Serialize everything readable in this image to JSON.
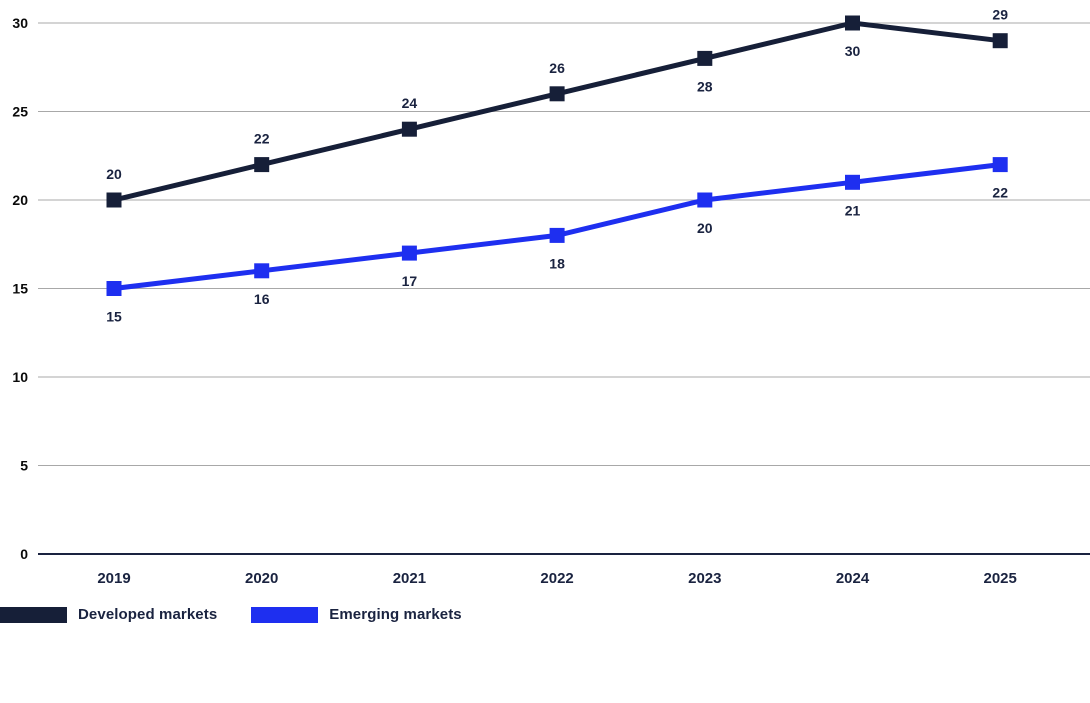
{
  "chart_data": {
    "type": "line",
    "title": "",
    "xlabel": "",
    "ylabel": "",
    "categories": [
      "2019",
      "2020",
      "2021",
      "2022",
      "2023",
      "2024",
      "2025"
    ],
    "series": [
      {
        "name": "Developed markets",
        "color": "#161f38",
        "values": [
          20,
          22,
          24,
          26,
          28,
          30,
          29
        ],
        "label_positions": [
          "above",
          "above",
          "above",
          "above",
          "below",
          "below",
          "above"
        ]
      },
      {
        "name": "Emerging markets",
        "color": "#1e2ff0",
        "values": [
          15,
          16,
          17,
          18,
          20,
          21,
          22
        ],
        "label_positions": [
          "below",
          "below",
          "below",
          "below",
          "below",
          "below",
          "below"
        ]
      }
    ],
    "y_ticks": [
      0,
      5,
      10,
      15,
      20,
      25,
      30
    ],
    "ylim": [
      0,
      30
    ],
    "grid": true,
    "marker_shape": "square",
    "legend_position": "bottom-left",
    "colors": {
      "gridline": "#a8a8a8",
      "axis_line": "#1a2340",
      "y_tick_label": "#0a0a0a",
      "x_tick_label": "#1a2340",
      "data_label": "#1a2340",
      "background": "#ffffff"
    }
  }
}
